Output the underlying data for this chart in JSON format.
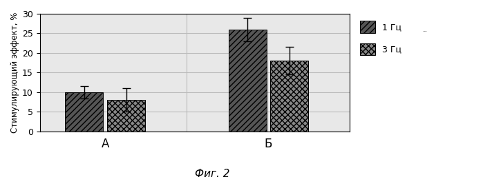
{
  "groups": [
    "А",
    "Б"
  ],
  "series": [
    "1 Гц",
    "3 Гц"
  ],
  "values": [
    [
      10.0,
      8.0
    ],
    [
      26.0,
      18.0
    ]
  ],
  "errors": [
    [
      1.5,
      3.0
    ],
    [
      3.0,
      3.5
    ]
  ],
  "bar_color_1hz": "#555555",
  "bar_color_3hz": "#888888",
  "hatch_1hz": "////",
  "hatch_3hz": "xxxx",
  "ylabel": "Стимулирующий эффект, %",
  "xlabel_fig": "Фиг. 2",
  "group_labels": [
    "А",
    "Б"
  ],
  "ylim": [
    0,
    30
  ],
  "yticks": [
    0,
    5,
    10,
    15,
    20,
    25,
    30
  ],
  "bar_width": 0.35,
  "legend_labels": [
    "1 Гц",
    "3 Гц"
  ],
  "background_color": "#ffffff",
  "plot_bg_color": "#e8e8e8",
  "grid_color": "#bbbbbb",
  "annotation": ".."
}
